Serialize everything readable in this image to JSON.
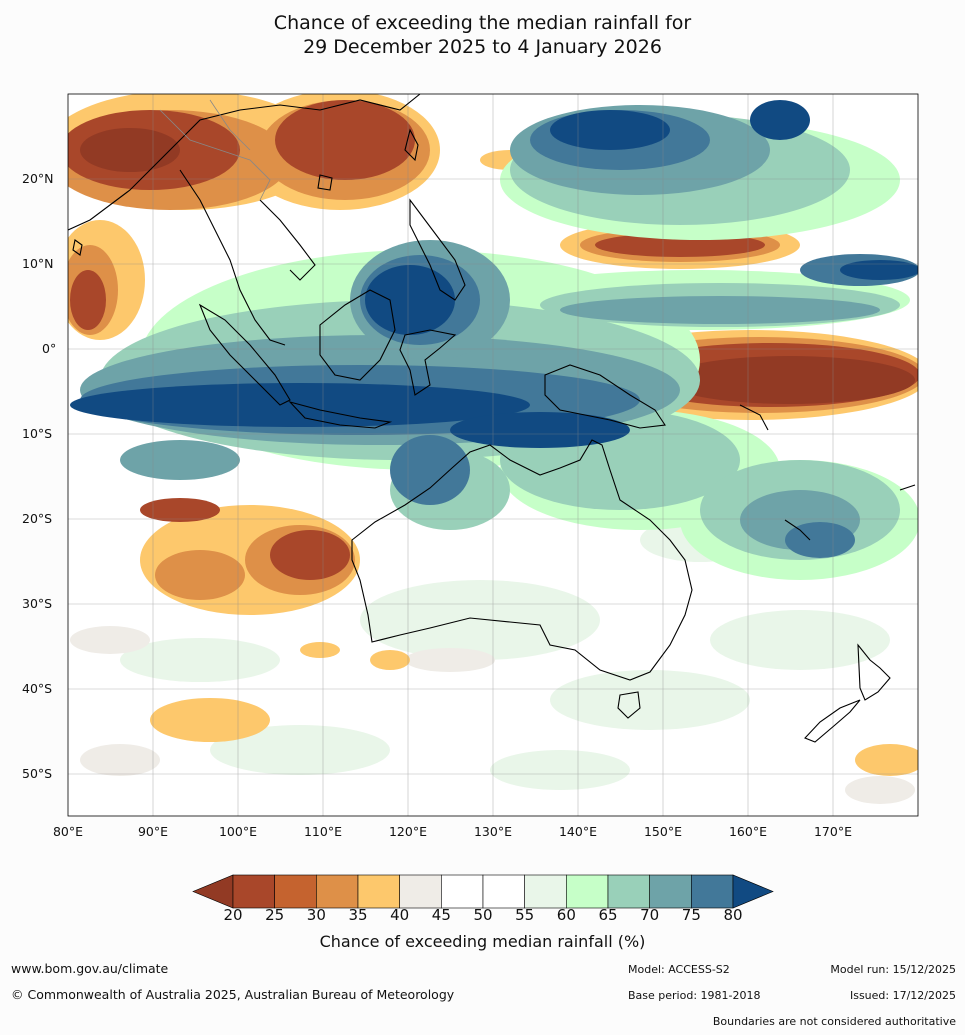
{
  "title": {
    "line1": "Chance of exceeding the median rainfall for",
    "line2": "29 December 2025 to 4 January 2026"
  },
  "map": {
    "lat_labels": [
      "20°N",
      "10°N",
      "0°",
      "10°S",
      "20°S",
      "30°S",
      "40°S",
      "50°S"
    ],
    "lon_labels": [
      "80°E",
      "90°E",
      "100°E",
      "110°E",
      "120°E",
      "130°E",
      "140°E",
      "150°E",
      "160°E",
      "170°E"
    ],
    "coastline_color": "#000000",
    "regions": "Indian Ocean, Southeast Asia, Maritime Continent, Australia, New Zealand, Western Pacific"
  },
  "colorbar": {
    "ticks": [
      "20",
      "25",
      "30",
      "35",
      "40",
      "45",
      "50",
      "55",
      "60",
      "65",
      "70",
      "75",
      "80"
    ],
    "colors": [
      "#a9472a",
      "#c5632f",
      "#de9048",
      "#fdc86c",
      "#efece7",
      "#ffffff",
      "#ffffff",
      "#e9f6e9",
      "#c6ffc8",
      "#99d0b9",
      "#6ea3a8",
      "#427899"
    ],
    "under_color": "#923a24",
    "over_color": "#114a82",
    "label": "Chance of exceeding median rainfall (%)"
  },
  "footer": {
    "website": "www.bom.gov.au/climate",
    "copyright": "© Commonwealth of Australia 2025, Australian Bureau of Meteorology",
    "model": "Model: ACCESS-S2",
    "base_period": "Base period: 1981-2018",
    "model_run": "Model run: 15/12/2025",
    "issued": "Issued: 17/12/2025",
    "disclaimer": "Boundaries are not considered authoritative"
  }
}
